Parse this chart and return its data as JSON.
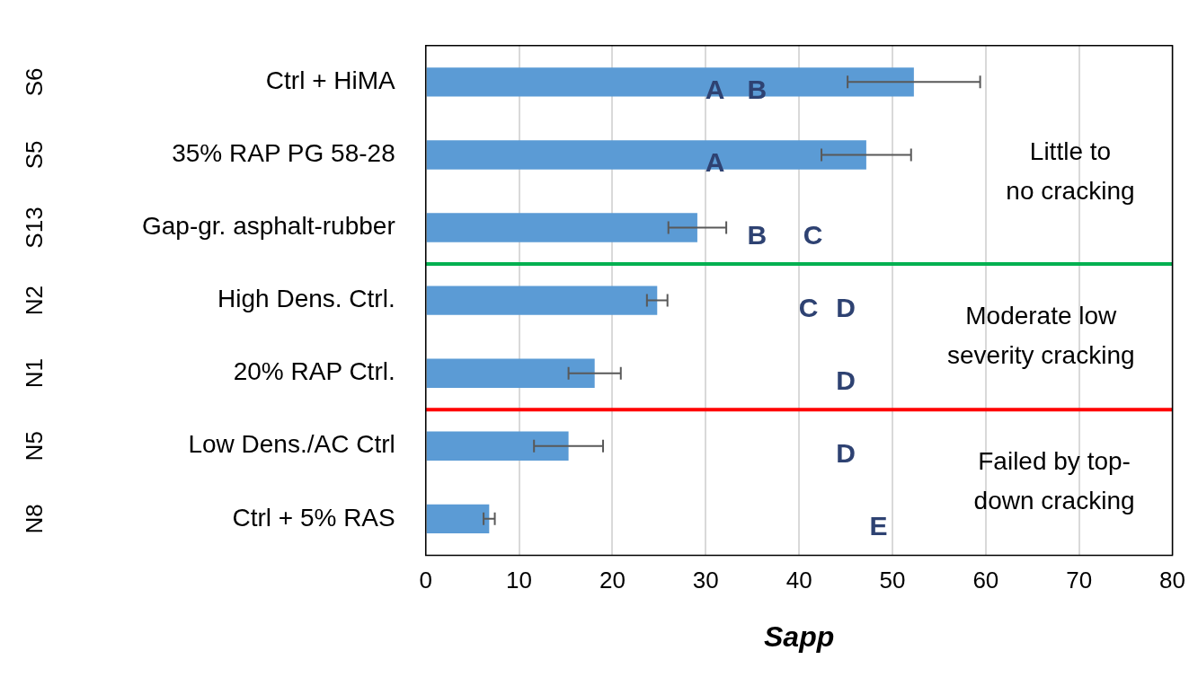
{
  "chart_data": {
    "type": "bar",
    "orientation": "horizontal",
    "xlabel": "Sapp",
    "categories": [
      "Ctrl + HiMA",
      "35% RAP PG 58-28",
      "Gap-gr. asphalt-rubber",
      "High Dens. Ctrl.",
      "20% RAP Ctrl.",
      "Low Dens./AC Ctrl",
      "Ctrl + 5% RAS"
    ],
    "values": [
      52.3,
      47.2,
      29.1,
      24.8,
      18.1,
      15.3,
      6.8
    ],
    "errors": [
      7.1,
      4.8,
      3.1,
      1.1,
      2.8,
      3.7,
      0.6
    ],
    "color": "#5b9bd5",
    "xlim": [
      0,
      80
    ],
    "xticks": [
      0,
      10,
      20,
      30,
      40,
      50,
      60,
      70,
      80
    ],
    "grid": "x",
    "legend": false,
    "ref_lines": [
      {
        "axis": "y",
        "value": "Gap-gr. asphalt-rubber",
        "color": "#00b050"
      },
      {
        "axis": "y",
        "value": "20% RAP Ctrl.",
        "color": "#ff0000"
      }
    ],
    "annotations": [
      "S6",
      "S5",
      "S13",
      "N2",
      "N1",
      "N5",
      "N8",
      "A",
      "B",
      "A",
      "B",
      "C",
      "C",
      "D",
      "D",
      "D",
      "E",
      "Little to\nno cracking",
      "Moderate low\nseverity cracking",
      "Failed by top-\ndown cracking"
    ]
  }
}
